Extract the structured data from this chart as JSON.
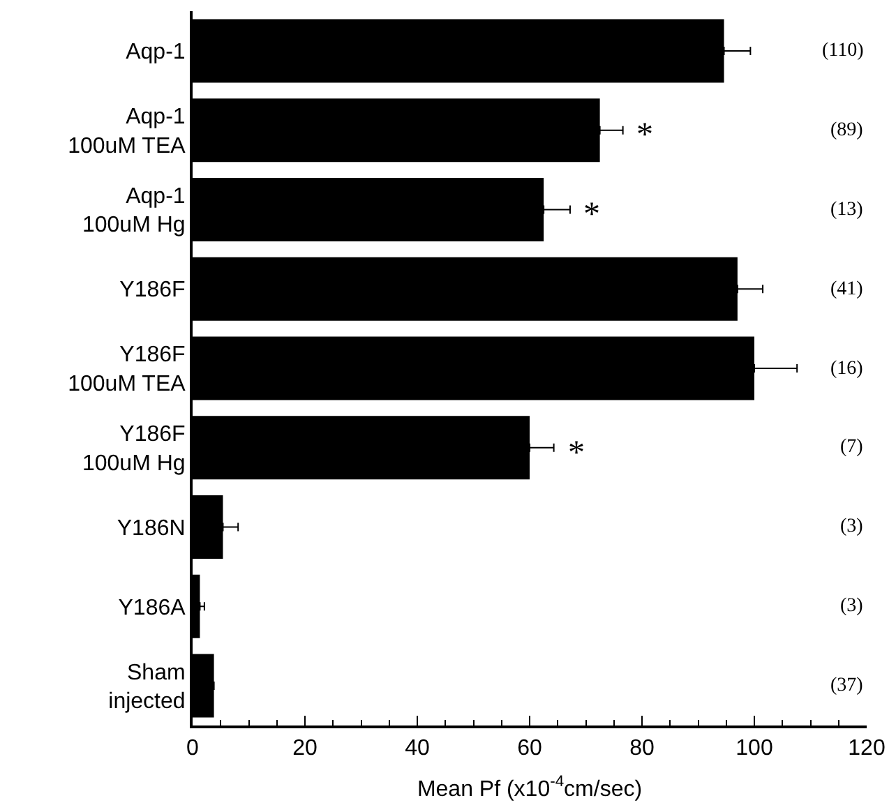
{
  "chart_data": {
    "type": "bar",
    "orientation": "horizontal",
    "categories": [
      "Aqp-1",
      "Aqp-1\n100uM TEA",
      "Aqp-1\n100uM Hg",
      "Y186F",
      "Y186F\n100uM TEA",
      "Y186F\n100uM Hg",
      "Y186N",
      "Y186A",
      "Sham\ninjected"
    ],
    "values": [
      94.6,
      72.5,
      62.5,
      97,
      100,
      60,
      5.4,
      1.3,
      3.8
    ],
    "errors": [
      [
        94.6,
        99.3
      ],
      [
        72.5,
        76.6
      ],
      [
        62.5,
        67.2
      ],
      [
        97,
        101.5
      ],
      [
        100,
        107.6
      ],
      [
        60,
        64.3
      ],
      [
        5.4,
        8.1
      ],
      [
        1.3,
        2.1
      ],
      null
    ],
    "color": "#000000",
    "xlabel": "Mean Pf (x10$^{-4}$cm/sec)",
    "xlim": [
      0,
      120
    ],
    "xticks": [
      0,
      20,
      40,
      60,
      80,
      100,
      120
    ],
    "value_labels": [
      null,
      "*",
      "*",
      null,
      null,
      "*",
      null,
      null,
      null
    ],
    "annotations": [
      "(110)",
      "(89)",
      "(13)",
      "(41)",
      "(16)",
      "(7)",
      "(3)",
      "(3)",
      "(37)"
    ]
  }
}
